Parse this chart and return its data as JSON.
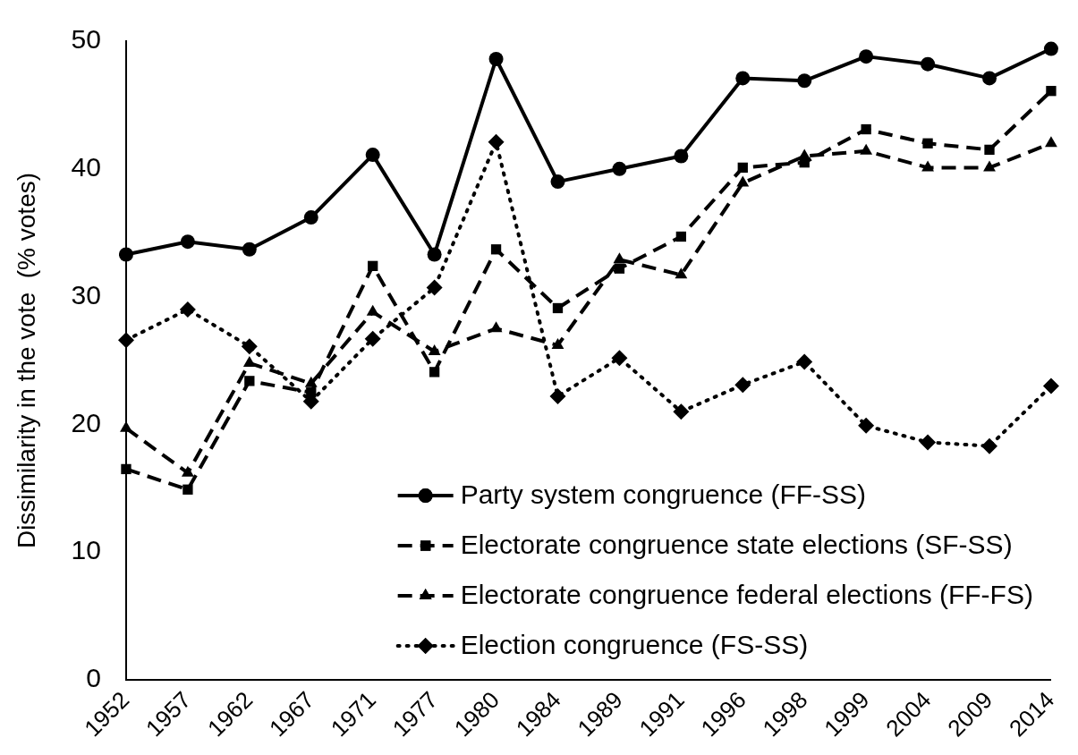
{
  "chart_data": {
    "type": "line",
    "ylabel": "Dissimilarity in the vote  (% votes)",
    "categories": [
      "1952",
      "1957",
      "1962",
      "1967",
      "1971",
      "1977",
      "1980",
      "1984",
      "1989",
      "1991",
      "1996",
      "1998",
      "1999",
      "2004",
      "2009",
      "2014"
    ],
    "ylim": [
      0,
      50
    ],
    "yticks": [
      0,
      10,
      20,
      30,
      40,
      50
    ],
    "grid": false,
    "legend": "bottom right",
    "series": [
      {
        "name": "Party system congruence (FF-SS)",
        "color": "#000000",
        "marker": "circle",
        "line_style": "solid",
        "values": [
          33.3,
          34.3,
          33.7,
          36.2,
          41.1,
          33.3,
          48.6,
          39.0,
          40.0,
          41.0,
          47.1,
          46.9,
          48.8,
          48.2,
          47.1,
          49.4
        ]
      },
      {
        "name": "Electorate congruence state elections (SF-SS)",
        "color": "#000000",
        "marker": "square",
        "line_style": "dashed",
        "values": [
          16.5,
          14.9,
          23.4,
          22.5,
          32.4,
          24.1,
          33.7,
          29.1,
          32.2,
          34.7,
          40.1,
          40.5,
          43.1,
          42.0,
          41.5,
          46.1
        ]
      },
      {
        "name": "Electorate congruence federal elections (FF-FS)",
        "color": "#000000",
        "marker": "triangle",
        "line_style": "dashed",
        "values": [
          19.7,
          16.2,
          24.8,
          23.2,
          28.8,
          25.7,
          27.5,
          26.2,
          32.9,
          31.7,
          38.9,
          41.0,
          41.4,
          40.1,
          40.1,
          42.0
        ]
      },
      {
        "name": "Election congruence (FS-SS)",
        "color": "#000000",
        "marker": "diamond",
        "line_style": "dotted",
        "values": [
          26.6,
          29.0,
          26.1,
          21.8,
          26.7,
          30.7,
          42.1,
          22.2,
          25.2,
          21.0,
          23.1,
          24.9,
          19.9,
          18.6,
          18.3,
          23.0
        ]
      }
    ]
  }
}
